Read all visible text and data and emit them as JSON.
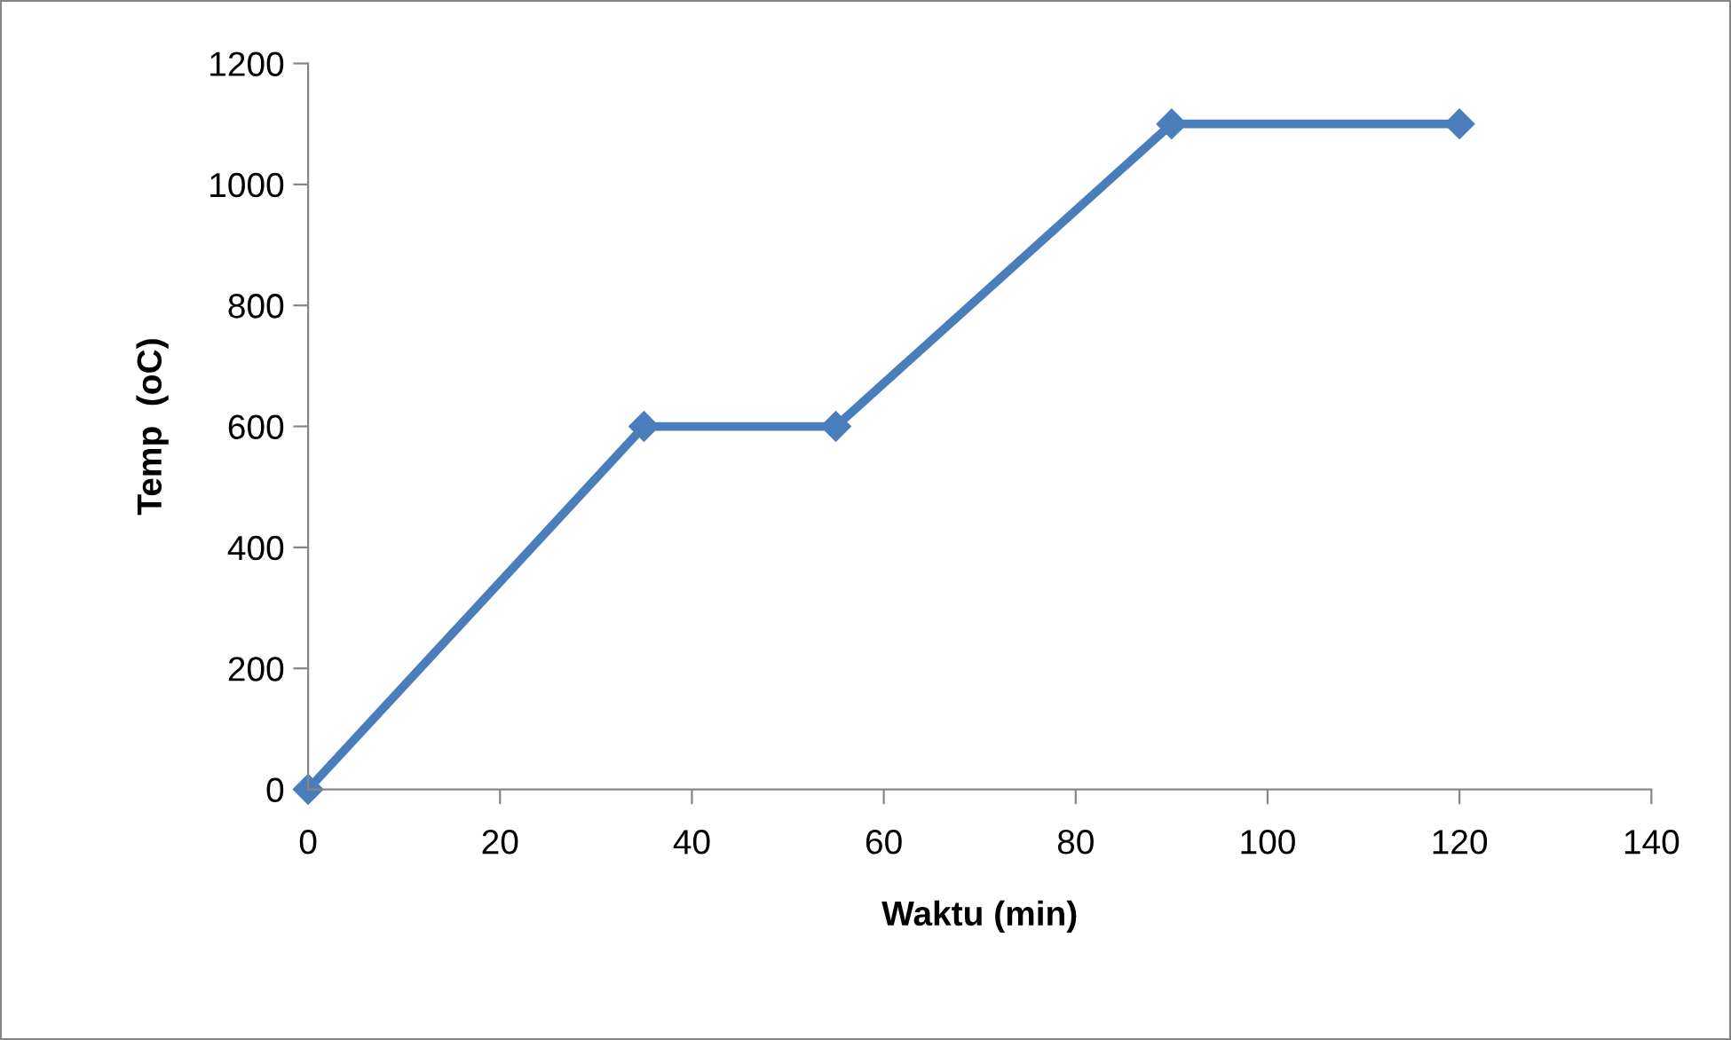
{
  "chart_data": {
    "type": "line",
    "xlabel": "Waktu (min)",
    "ylabel": "Temp  (oC)",
    "x": [
      0,
      35,
      55,
      90,
      120
    ],
    "series": [
      {
        "color": "#4a7ebb",
        "values": [
          0,
          600,
          600,
          1100,
          1100
        ]
      }
    ],
    "xlim": [
      0,
      140
    ],
    "xticks": [
      0,
      20,
      40,
      60,
      80,
      100,
      120,
      140
    ],
    "ylim": [
      0,
      1200
    ],
    "yticks": [
      0,
      200,
      400,
      600,
      800,
      1000,
      1200
    ],
    "marker": "diamond",
    "line_style": "solid",
    "grid": false,
    "legend": false
  }
}
